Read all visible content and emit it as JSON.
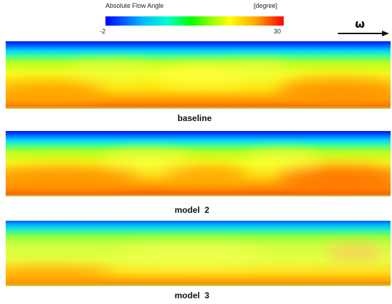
{
  "colorbar": {
    "title": "Absolute Flow Angle",
    "unit": "[degree]",
    "min_label": "-2",
    "max_label": "30",
    "min": -2,
    "max": 30,
    "colors": [
      "#0000ff",
      "#00b4ff",
      "#00ffd0",
      "#00ff00",
      "#a0ff00",
      "#ffff00",
      "#ffaa00",
      "#ff0000"
    ]
  },
  "rotation": {
    "symbol": "ω"
  },
  "panels": [
    {
      "label": "baseline"
    },
    {
      "label": "model  2"
    },
    {
      "label": "model  3"
    }
  ]
}
